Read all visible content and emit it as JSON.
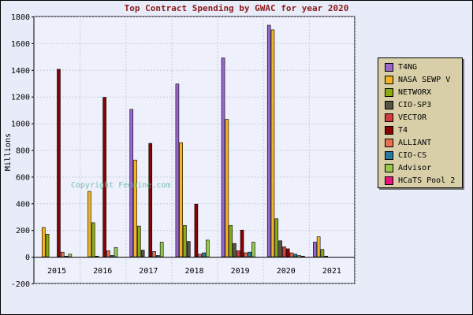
{
  "chart_data": {
    "type": "bar",
    "title": "Top Contract Spending by GWAC for year 2020",
    "ylabel": "Millions",
    "xlabel": "",
    "ylim": [
      -200,
      1800
    ],
    "yticks": [
      -200,
      0,
      200,
      400,
      600,
      800,
      1000,
      1200,
      1400,
      1600,
      1800
    ],
    "grid": true,
    "legend_position": "right",
    "categories": [
      "2015",
      "2016",
      "2017",
      "2018",
      "2019",
      "2020",
      "2021"
    ],
    "series": [
      {
        "name": "T4NG",
        "color": "#9966cc",
        "values": [
          0,
          0,
          1105,
          1295,
          1490,
          1735,
          110
        ]
      },
      {
        "name": "NASA SEWP V",
        "color": "#f0b428",
        "values": [
          220,
          490,
          725,
          855,
          1030,
          1700,
          150
        ]
      },
      {
        "name": "NETWORX",
        "color": "#8caa14",
        "values": [
          170,
          255,
          230,
          235,
          235,
          285,
          55
        ]
      },
      {
        "name": "CIO-SP3",
        "color": "#555544",
        "values": [
          0,
          5,
          50,
          115,
          100,
          120,
          5
        ]
      },
      {
        "name": "VECTOR",
        "color": "#d23c3c",
        "values": [
          0,
          0,
          0,
          0,
          45,
          75,
          0
        ]
      },
      {
        "name": "T4",
        "color": "#8b0000",
        "values": [
          1405,
          1195,
          850,
          395,
          200,
          60,
          0
        ]
      },
      {
        "name": "ALLIANT",
        "color": "#e87050",
        "values": [
          35,
          45,
          40,
          20,
          30,
          30,
          0
        ]
      },
      {
        "name": "CIO-CS",
        "color": "#2878a0",
        "values": [
          5,
          10,
          10,
          30,
          35,
          20,
          0
        ]
      },
      {
        "name": "Advisor",
        "color": "#96c850",
        "values": [
          20,
          70,
          110,
          125,
          110,
          10,
          0
        ]
      },
      {
        "name": "HCaTS Pool 2",
        "color": "#e6147a",
        "values": [
          0,
          0,
          0,
          0,
          0,
          5,
          0
        ]
      }
    ]
  },
  "watermark": "Copyright Fedmine.com",
  "colors": {
    "background": "#e8ecf8",
    "plot_background": "#eef0fb",
    "title": "#8b1a1a",
    "legend_background": "#d8cfa8"
  }
}
